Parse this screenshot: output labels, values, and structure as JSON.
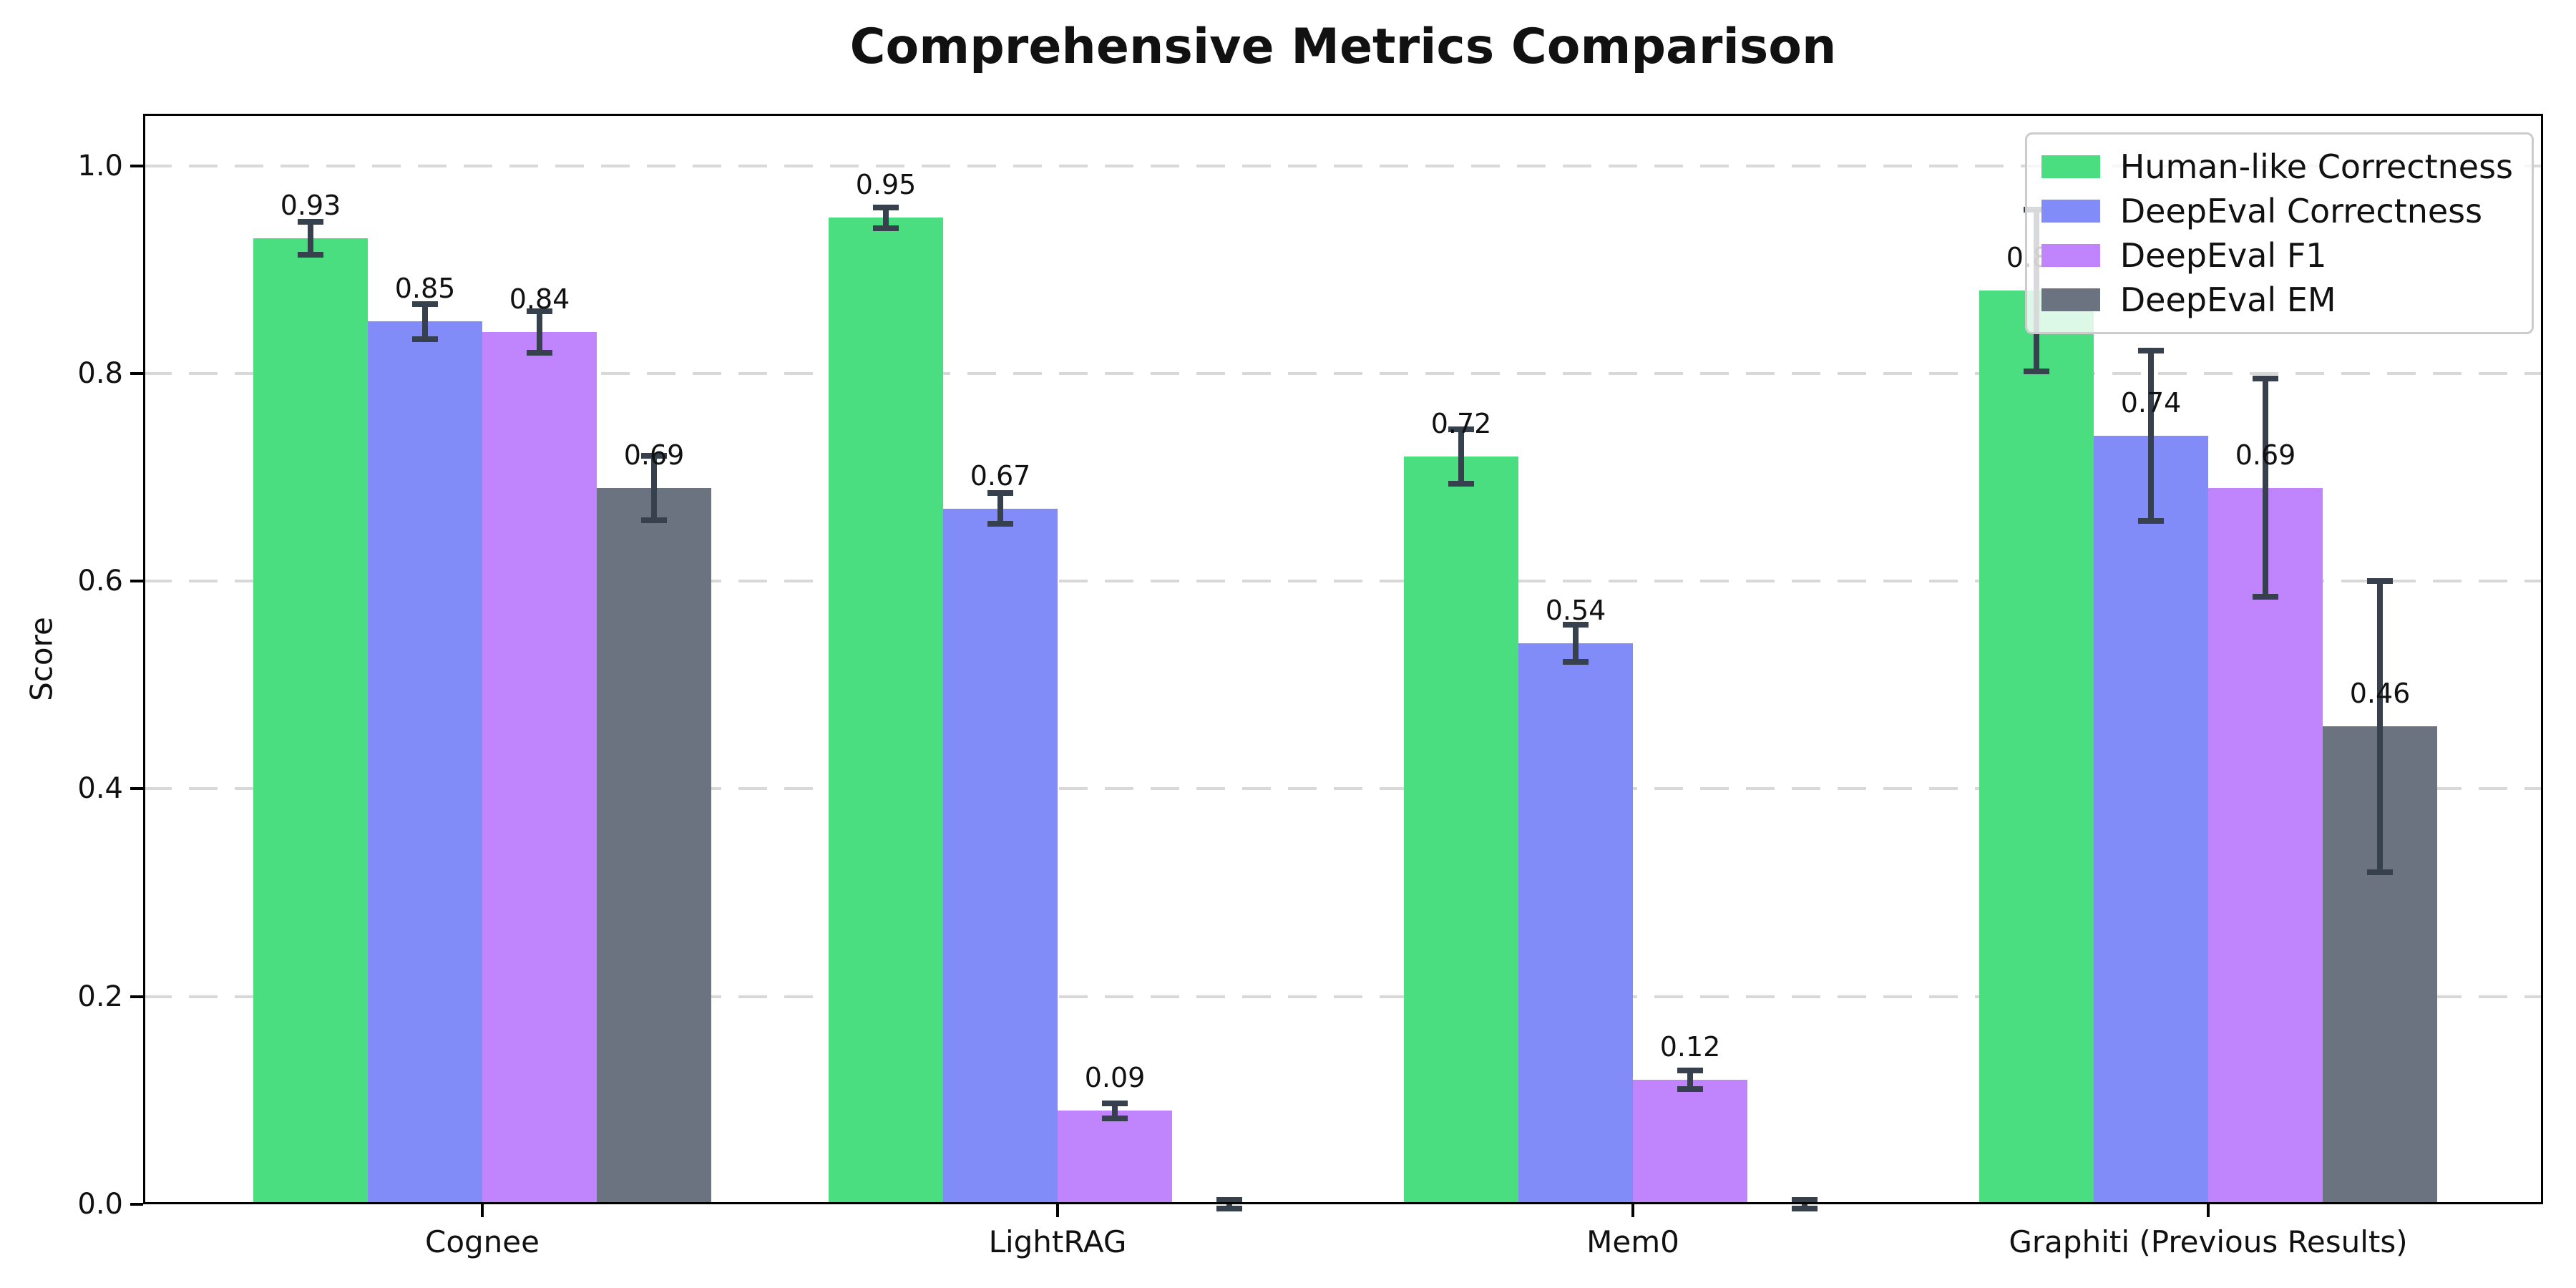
{
  "figure": {
    "title": "Comprehensive Metrics Comparison"
  },
  "chart_data": {
    "type": "bar",
    "title": "Comprehensive Metrics Comparison",
    "xlabel": "",
    "ylabel": "Score",
    "ylim": [
      0,
      1.05
    ],
    "yticks": [
      0.0,
      0.2,
      0.4,
      0.6,
      0.8,
      1.0
    ],
    "grid": "horizontal-dashed",
    "grid_color": "#d8d8d8",
    "legend_position": "upper-right",
    "error_bar_color": "#37414e",
    "categories": [
      "Cognee",
      "LightRAG",
      "Mem0",
      "Graphiti (Previous Results)"
    ],
    "series": [
      {
        "name": "Human-like Correctness",
        "color": "#4ade80",
        "values": [
          0.93,
          0.95,
          0.72,
          0.88
        ],
        "errors": [
          0.016,
          0.01,
          0.026,
          0.078
        ],
        "value_labels": [
          "0.93",
          "0.95",
          "0.72",
          "0.88"
        ]
      },
      {
        "name": "DeepEval Correctness",
        "color": "#818cf8",
        "values": [
          0.85,
          0.67,
          0.54,
          0.74
        ],
        "errors": [
          0.017,
          0.015,
          0.018,
          0.082
        ],
        "value_labels": [
          "0.85",
          "0.67",
          "0.54",
          "0.74"
        ]
      },
      {
        "name": "DeepEval F1",
        "color": "#c084fc",
        "values": [
          0.84,
          0.09,
          0.12,
          0.69
        ],
        "errors": [
          0.02,
          0.007,
          0.009,
          0.105
        ],
        "value_labels": [
          "0.84",
          "0.09",
          "0.12",
          "0.69"
        ]
      },
      {
        "name": "DeepEval EM",
        "color": "#6b7280",
        "values": [
          0.69,
          0.0,
          0.0,
          0.46
        ],
        "errors": [
          0.031,
          0.004,
          0.004,
          0.14
        ],
        "value_labels": [
          "0.69",
          "",
          "",
          "0.46"
        ]
      }
    ]
  }
}
